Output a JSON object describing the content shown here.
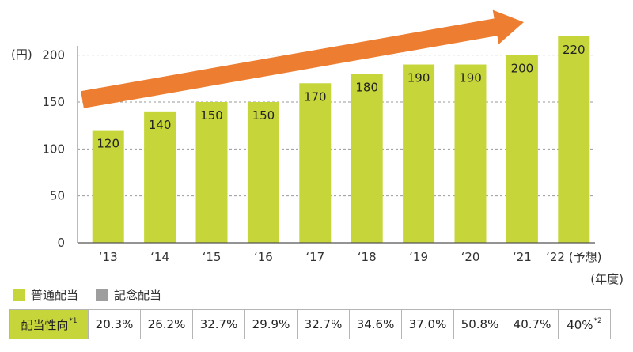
{
  "chart_data": {
    "type": "bar",
    "categories": [
      "‘13",
      "‘14",
      "‘15",
      "‘16",
      "‘17",
      "‘18",
      "‘19",
      "‘20",
      "‘21",
      "‘22 (予想)"
    ],
    "series": [
      {
        "name": "普通配当",
        "values": [
          120,
          140,
          150,
          150,
          170,
          180,
          190,
          190,
          200,
          220
        ]
      },
      {
        "name": "記念配当",
        "values": [
          0,
          0,
          0,
          0,
          0,
          0,
          0,
          0,
          0,
          0
        ]
      }
    ],
    "data_labels": [
      "120",
      "140",
      "150",
      "150",
      "170",
      "180",
      "190",
      "190",
      "200",
      "220"
    ],
    "ylabel": "(円)",
    "xlabel": "(年度)",
    "yticks": [
      0,
      50,
      100,
      150,
      200
    ],
    "ylim": [
      0,
      220
    ],
    "grid": true,
    "legend_position": "bottom-left",
    "trend_arrow": true
  },
  "colors": {
    "regular": "#c6d63a",
    "commemorative": "#9e9e9e",
    "arrow": "#ed7d31",
    "header": "#c6d63a"
  },
  "legend": [
    {
      "label": "普通配当",
      "color": "#c6d63a"
    },
    {
      "label": "記念配当",
      "color": "#9e9e9e"
    }
  ],
  "payout_table": {
    "header": "配当性向",
    "header_note": "*1",
    "values": [
      "20.3%",
      "26.2%",
      "32.7%",
      "29.9%",
      "32.7%",
      "34.6%",
      "37.0%",
      "50.8%",
      "40.7%",
      "40%"
    ],
    "last_note": "*2"
  }
}
